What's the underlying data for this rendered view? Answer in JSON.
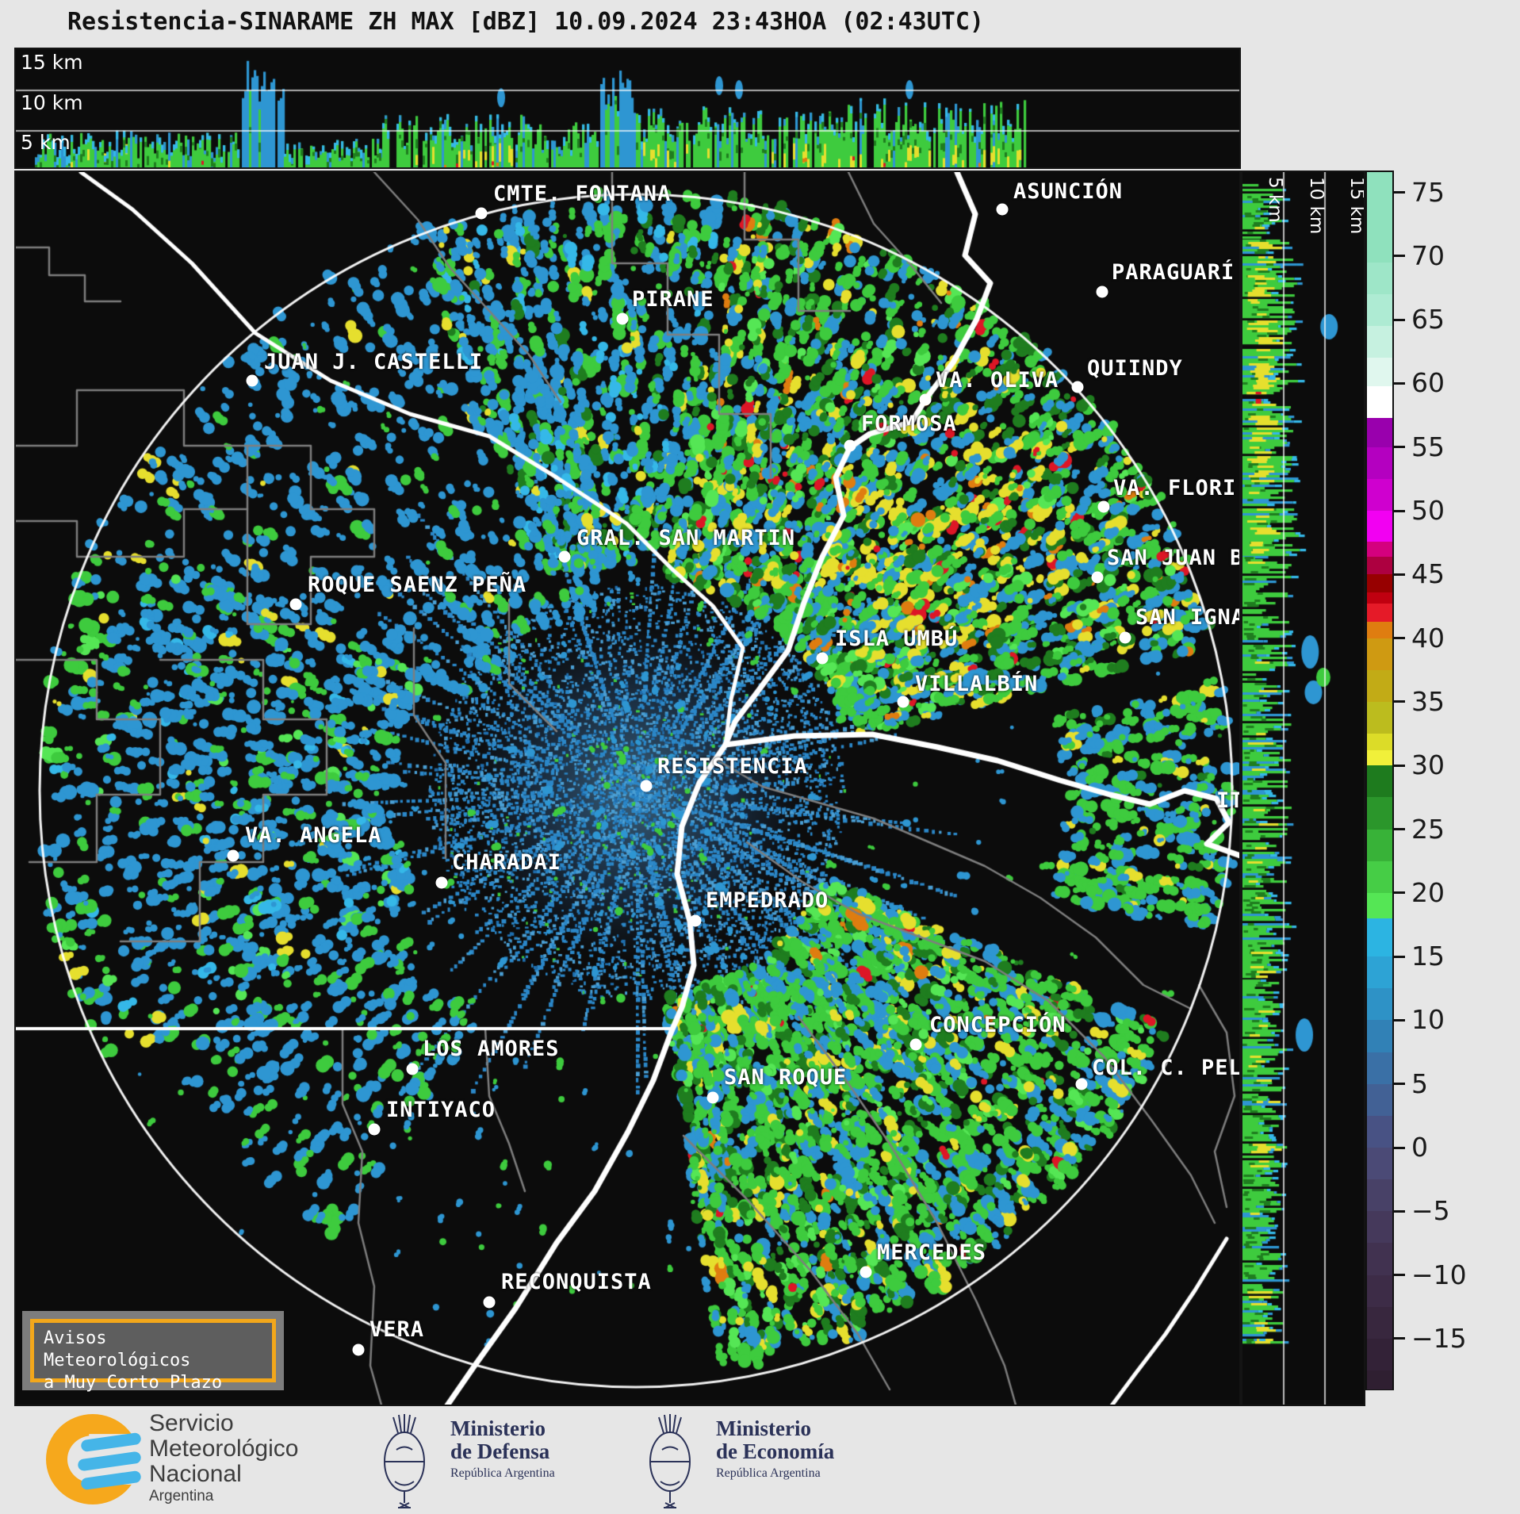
{
  "title": "Resistencia-SINARAME ZH MAX [dBZ] 10.09.2024 23:43HOA (02:43UTC)",
  "top_panel": {
    "height_labels": [
      "15 km",
      "10 km",
      "5 km"
    ]
  },
  "right_panel": {
    "height_labels": [
      "5 km",
      "10 km",
      "15 km"
    ]
  },
  "colorbar": {
    "unit": "dBZ",
    "ticks": [
      "75",
      "70",
      "65",
      "60",
      "55",
      "50",
      "45",
      "40",
      "35",
      "30",
      "25",
      "20",
      "15",
      "10",
      "5",
      "0",
      "−5",
      "−10",
      "−15"
    ],
    "tick_values": [
      75,
      70,
      65,
      60,
      55,
      50,
      45,
      40,
      35,
      30,
      25,
      20,
      15,
      10,
      5,
      0,
      -5,
      -10,
      -15
    ],
    "segments": [
      {
        "v0": 77.6,
        "v1": 69.5,
        "c": "#8fe1bd"
      },
      {
        "v0": 69.5,
        "v1": 67.0,
        "c": "#9ee6c8"
      },
      {
        "v0": 67.0,
        "v1": 64.5,
        "c": "#aeebd3"
      },
      {
        "v0": 64.5,
        "v1": 62.0,
        "c": "#c6f1e0"
      },
      {
        "v0": 62.0,
        "v1": 59.8,
        "c": "#e0f7ee"
      },
      {
        "v0": 59.8,
        "v1": 57.3,
        "c": "#ffffff"
      },
      {
        "v0": 57.3,
        "v1": 55.0,
        "c": "#9900ad"
      },
      {
        "v0": 55.0,
        "v1": 52.5,
        "c": "#b400c0"
      },
      {
        "v0": 52.5,
        "v1": 50.0,
        "c": "#cf00cf"
      },
      {
        "v0": 50.0,
        "v1": 47.6,
        "c": "#f200f2"
      },
      {
        "v0": 47.6,
        "v1": 46.4,
        "c": "#d4007e"
      },
      {
        "v0": 46.4,
        "v1": 45.0,
        "c": "#ad0040"
      },
      {
        "v0": 45.0,
        "v1": 43.6,
        "c": "#970000"
      },
      {
        "v0": 43.6,
        "v1": 42.7,
        "c": "#c00010"
      },
      {
        "v0": 42.7,
        "v1": 41.3,
        "c": "#e51a28"
      },
      {
        "v0": 41.3,
        "v1": 40.0,
        "c": "#df7d10"
      },
      {
        "v0": 40.0,
        "v1": 37.5,
        "c": "#cf9a12"
      },
      {
        "v0": 37.5,
        "v1": 35.0,
        "c": "#c2ab16"
      },
      {
        "v0": 35.0,
        "v1": 32.5,
        "c": "#bcbc1e"
      },
      {
        "v0": 32.5,
        "v1": 31.2,
        "c": "#dcdc28"
      },
      {
        "v0": 31.2,
        "v1": 30.0,
        "c": "#f1f03a"
      },
      {
        "v0": 30.0,
        "v1": 27.5,
        "c": "#1e7b1e"
      },
      {
        "v0": 27.5,
        "v1": 25.0,
        "c": "#2b962b"
      },
      {
        "v0": 25.0,
        "v1": 22.5,
        "c": "#38b238"
      },
      {
        "v0": 22.5,
        "v1": 20.0,
        "c": "#46cd46"
      },
      {
        "v0": 20.0,
        "v1": 18.0,
        "c": "#55e655"
      },
      {
        "v0": 18.0,
        "v1": 15.0,
        "c": "#2cb4e2"
      },
      {
        "v0": 15.0,
        "v1": 12.5,
        "c": "#2da3d5"
      },
      {
        "v0": 12.5,
        "v1": 10.0,
        "c": "#2e92c6"
      },
      {
        "v0": 10.0,
        "v1": 7.5,
        "c": "#3181b6"
      },
      {
        "v0": 7.5,
        "v1": 5.0,
        "c": "#3a70a6"
      },
      {
        "v0": 5.0,
        "v1": 2.5,
        "c": "#426195"
      },
      {
        "v0": 2.5,
        "v1": 0.0,
        "c": "#485284"
      },
      {
        "v0": 0.0,
        "v1": -2.5,
        "c": "#4b4a76"
      },
      {
        "v0": -2.5,
        "v1": -5.0,
        "c": "#484167"
      },
      {
        "v0": -5.0,
        "v1": -7.5,
        "c": "#45395b"
      },
      {
        "v0": -7.5,
        "v1": -10.0,
        "c": "#413250"
      },
      {
        "v0": -10.0,
        "v1": -12.5,
        "c": "#3d2c47"
      },
      {
        "v0": -12.5,
        "v1": -15.0,
        "c": "#38273e"
      },
      {
        "v0": -15.0,
        "v1": -17.5,
        "c": "#332237"
      },
      {
        "v0": -17.5,
        "v1": -19.1,
        "c": "#2f1f31"
      }
    ]
  },
  "map": {
    "cities": [
      {
        "name": "CMTE. FONTANA",
        "dot": [
          605,
          267
        ],
        "label": [
          620,
          243
        ]
      },
      {
        "name": "ASUNCIÓN",
        "dot": [
          1262,
          262
        ],
        "label": [
          1276,
          240
        ]
      },
      {
        "name": "PIRANE",
        "dot": [
          783,
          400
        ],
        "label": [
          795,
          376
        ]
      },
      {
        "name": "JUAN J. CASTELLI",
        "dot": [
          316,
          478
        ],
        "label": [
          331,
          455
        ]
      },
      {
        "name": "PARAGUARÍ",
        "dot": [
          1388,
          366
        ],
        "label": [
          1400,
          342
        ]
      },
      {
        "name": "QUIINDY",
        "dot": [
          1357,
          486
        ],
        "label": [
          1369,
          463
        ]
      },
      {
        "name": "VA. OLIVA",
        "dot": [
          1165,
          502
        ],
        "label": [
          1178,
          478
        ]
      },
      {
        "name": "FORMOSA",
        "dot": [
          1070,
          560
        ],
        "label": [
          1084,
          533
        ]
      },
      {
        "name": "VA. FLORI",
        "dot": [
          1390,
          637
        ],
        "label": [
          1402,
          614
        ]
      },
      {
        "name": "GRAL. SAN MARTIN",
        "dot": [
          710,
          700
        ],
        "label": [
          725,
          677
        ]
      },
      {
        "name": "SAN JUAN B",
        "dot": [
          1382,
          726
        ],
        "label": [
          1394,
          702
        ]
      },
      {
        "name": "ROQUE SAENZ PEÑA",
        "dot": [
          371,
          760
        ],
        "label": [
          386,
          736
        ]
      },
      {
        "name": "SAN IGNA",
        "dot": [
          1417,
          802
        ],
        "label": [
          1430,
          777
        ]
      },
      {
        "name": "ISLA UMBÚ",
        "dot": [
          1035,
          828
        ],
        "label": [
          1051,
          804
        ]
      },
      {
        "name": "VILLALBÍN",
        "dot": [
          1137,
          883
        ],
        "label": [
          1152,
          861
        ]
      },
      {
        "name": "RESISTENCIA",
        "dot": [
          813,
          989
        ],
        "label": [
          827,
          965
        ]
      },
      {
        "name": "IT",
        "dot": null,
        "label": [
          1532,
          1008
        ]
      },
      {
        "name": "VA. ANGELA",
        "dot": [
          292,
          1077
        ],
        "label": [
          307,
          1052
        ]
      },
      {
        "name": "CHARADAI",
        "dot": [
          555,
          1111
        ],
        "label": [
          568,
          1086
        ]
      },
      {
        "name": "EMPEDRADO",
        "dot": [
          875,
          1159
        ],
        "label": [
          888,
          1134
        ]
      },
      {
        "name": "LOS AMORES",
        "dot": [
          518,
          1346
        ],
        "label": [
          531,
          1321
        ]
      },
      {
        "name": "CONCEPCIÓN",
        "dot": [
          1153,
          1315
        ],
        "label": [
          1170,
          1291
        ]
      },
      {
        "name": "SAN ROQUE",
        "dot": [
          897,
          1382
        ],
        "label": [
          911,
          1357
        ]
      },
      {
        "name": "COL. C. PEL",
        "dot": [
          1362,
          1365
        ],
        "label": [
          1375,
          1345
        ]
      },
      {
        "name": "INTIYACO",
        "dot": [
          470,
          1422
        ],
        "label": [
          485,
          1398
        ]
      },
      {
        "name": "RECONQUISTA",
        "dot": [
          615,
          1640
        ],
        "label": [
          630,
          1615
        ]
      },
      {
        "name": "MERCEDES",
        "dot": [
          1090,
          1602
        ],
        "label": [
          1104,
          1578
        ]
      },
      {
        "name": "VERA",
        "dot": [
          450,
          1700
        ],
        "label": [
          464,
          1675
        ]
      }
    ],
    "notice": {
      "line1": "Avisos Meteorológicos",
      "line2": "a Muy Corto Plazo",
      "border_color": "#f2a71b"
    }
  },
  "footer": {
    "smn": {
      "line1": "Servicio",
      "line2": "Meteorológico",
      "line3": "Nacional",
      "country": "Argentina",
      "brand_orange": "#f6a81c",
      "brand_blue": "#45b5e8"
    },
    "ministries": [
      {
        "line1": "Ministerio",
        "line2": "de Defensa",
        "sub": "República Argentina"
      },
      {
        "line1": "Ministerio",
        "line2": "de Economía",
        "sub": "República Argentina"
      }
    ]
  }
}
